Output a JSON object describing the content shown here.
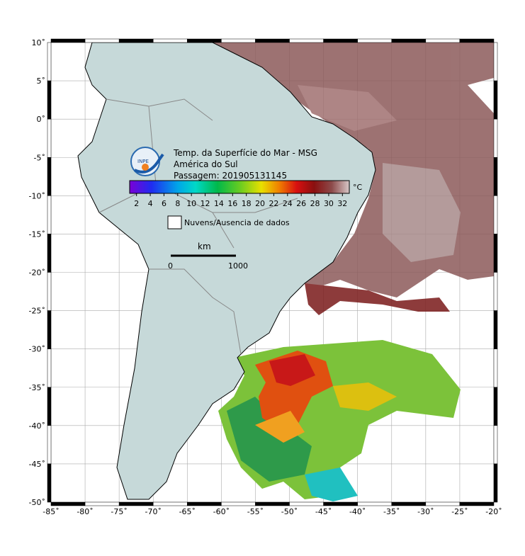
{
  "map": {
    "title_lines": [
      "Temp. da Superfície do Mar - MSG",
      "América do Sul",
      "Passagem: 201905131145"
    ],
    "logo_text": "INPE",
    "colorbar": {
      "unit": "°C",
      "ticks": [
        2,
        4,
        6,
        8,
        10,
        12,
        14,
        16,
        18,
        20,
        22,
        24,
        26,
        28,
        30,
        32
      ]
    },
    "legend": "Nuvens/Ausencia de dados",
    "scale": {
      "unit": "km",
      "labels": [
        "0",
        "1000"
      ]
    },
    "xticks": [
      {
        "value": -85,
        "label": "-85˚"
      },
      {
        "value": -80,
        "label": "-80˚"
      },
      {
        "value": -75,
        "label": "-75˚"
      },
      {
        "value": -70,
        "label": "-70˚"
      },
      {
        "value": -65,
        "label": "-65˚"
      },
      {
        "value": -60,
        "label": "-60˚"
      },
      {
        "value": -55,
        "label": "-55˚"
      },
      {
        "value": -50,
        "label": "-50˚"
      },
      {
        "value": -45,
        "label": "-45˚"
      },
      {
        "value": -40,
        "label": "-40˚"
      },
      {
        "value": -35,
        "label": "-35˚"
      },
      {
        "value": -30,
        "label": "-30˚"
      },
      {
        "value": -25,
        "label": "-25˚"
      },
      {
        "value": -20,
        "label": "-20˚"
      }
    ],
    "yticks": [
      {
        "value": 10,
        "label": "10˚"
      },
      {
        "value": 5,
        "label": "5˚"
      },
      {
        "value": 0,
        "label": "0˚"
      },
      {
        "value": -5,
        "label": "-5˚"
      },
      {
        "value": -10,
        "label": "-10˚"
      },
      {
        "value": -15,
        "label": "-15˚"
      },
      {
        "value": -20,
        "label": "-20˚"
      },
      {
        "value": -25,
        "label": "-25˚"
      },
      {
        "value": -30,
        "label": "-30˚"
      },
      {
        "value": -35,
        "label": "-35˚"
      },
      {
        "value": -40,
        "label": "-40˚"
      },
      {
        "value": -45,
        "label": "-45˚"
      },
      {
        "value": -50,
        "label": "-50˚"
      }
    ]
  }
}
